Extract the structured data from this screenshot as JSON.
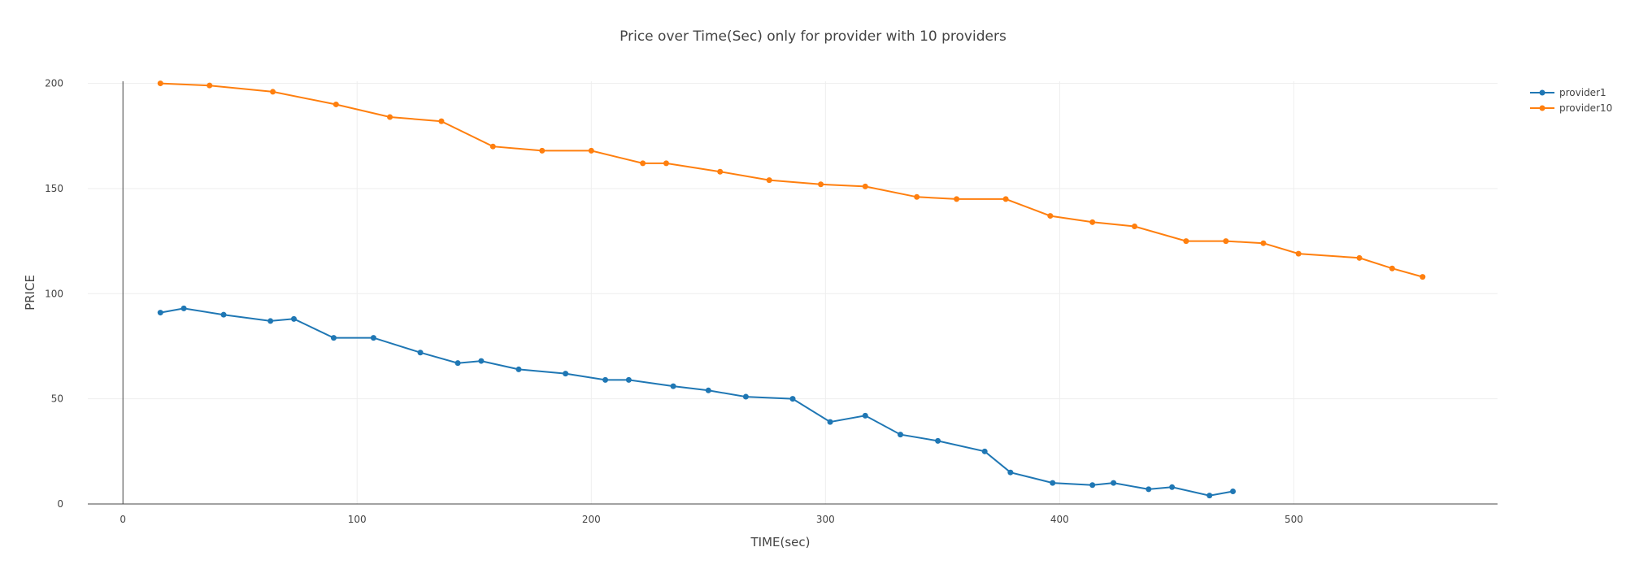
{
  "chart_data": {
    "type": "line",
    "title": "Price over Time(Sec) only for provider with 10 providers",
    "xlabel": "TIME(sec)",
    "ylabel": "PRICE",
    "xlim": [
      -15,
      587
    ],
    "ylim": [
      0,
      201
    ],
    "xticks": [
      0,
      100,
      200,
      300,
      400,
      500
    ],
    "yticks": [
      0,
      50,
      100,
      150,
      200
    ],
    "grid": true,
    "legend_position": "top-right",
    "series": [
      {
        "name": "provider1",
        "color": "#1f77b4",
        "x": [
          16,
          26,
          43,
          63,
          73,
          90,
          107,
          127,
          143,
          153,
          169,
          189,
          206,
          216,
          235,
          250,
          266,
          286,
          302,
          317,
          332,
          348,
          368,
          379,
          397,
          414,
          423,
          438,
          448,
          464,
          474
        ],
        "y": [
          91,
          93,
          90,
          87,
          88,
          79,
          79,
          72,
          67,
          68,
          64,
          62,
          59,
          59,
          56,
          54,
          51,
          50,
          39,
          42,
          33,
          30,
          25,
          15,
          10,
          9,
          10,
          7,
          8,
          4,
          6
        ]
      },
      {
        "name": "provider10",
        "color": "#ff7f0e",
        "x": [
          16,
          37,
          64,
          91,
          114,
          136,
          158,
          179,
          200,
          222,
          232,
          255,
          276,
          298,
          317,
          339,
          356,
          377,
          396,
          414,
          432,
          454,
          471,
          487,
          502,
          528,
          542,
          555
        ],
        "y": [
          200,
          199,
          196,
          190,
          184,
          182,
          170,
          168,
          168,
          162,
          162,
          158,
          154,
          152,
          151,
          146,
          145,
          145,
          137,
          134,
          132,
          125,
          125,
          124,
          119,
          117,
          112,
          108
        ]
      }
    ]
  }
}
